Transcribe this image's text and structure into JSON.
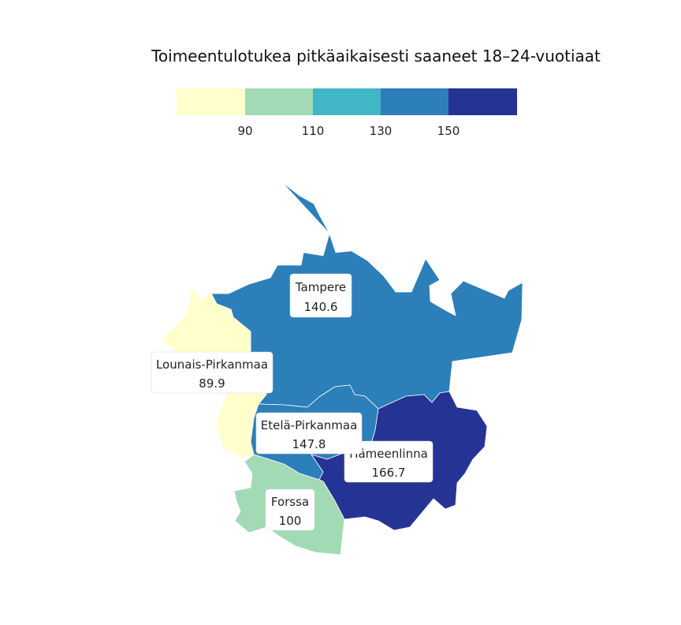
{
  "map": {
    "title": "Toimeentulotukea pitkäaikaisesti saaneet 18–24-vuotiaat"
  },
  "legend": {
    "bins": [
      {
        "from": null,
        "to": 90,
        "color": "#ffffcc"
      },
      {
        "from": 90,
        "to": 110,
        "color": "#a1dab4"
      },
      {
        "from": 110,
        "to": 130,
        "color": "#41b6c4"
      },
      {
        "from": 130,
        "to": 150,
        "color": "#2c7fb8"
      },
      {
        "from": 150,
        "to": null,
        "color": "#253494"
      }
    ],
    "ticks": [
      "90",
      "110",
      "130",
      "150"
    ]
  },
  "regions": [
    {
      "id": "tampere",
      "name": "Tampere",
      "value": 140.6,
      "value_label": "140.6",
      "color": "#2c7fb8"
    },
    {
      "id": "lounais-pirkanmaa",
      "name": "Lounais-Pirkanmaa",
      "value": 89.9,
      "value_label": "89.9",
      "color": "#ffffcc"
    },
    {
      "id": "etela-pirkanmaa",
      "name": "Etelä-Pirkanmaa",
      "value": 147.8,
      "value_label": "147.8",
      "color": "#2c7fb8"
    },
    {
      "id": "hameenlinna",
      "name": "Hämeenlinna",
      "value": 166.7,
      "value_label": "166.7",
      "color": "#253494"
    },
    {
      "id": "forssa",
      "name": "Forssa",
      "value": 100,
      "value_label": "100",
      "color": "#a1dab4"
    }
  ]
}
